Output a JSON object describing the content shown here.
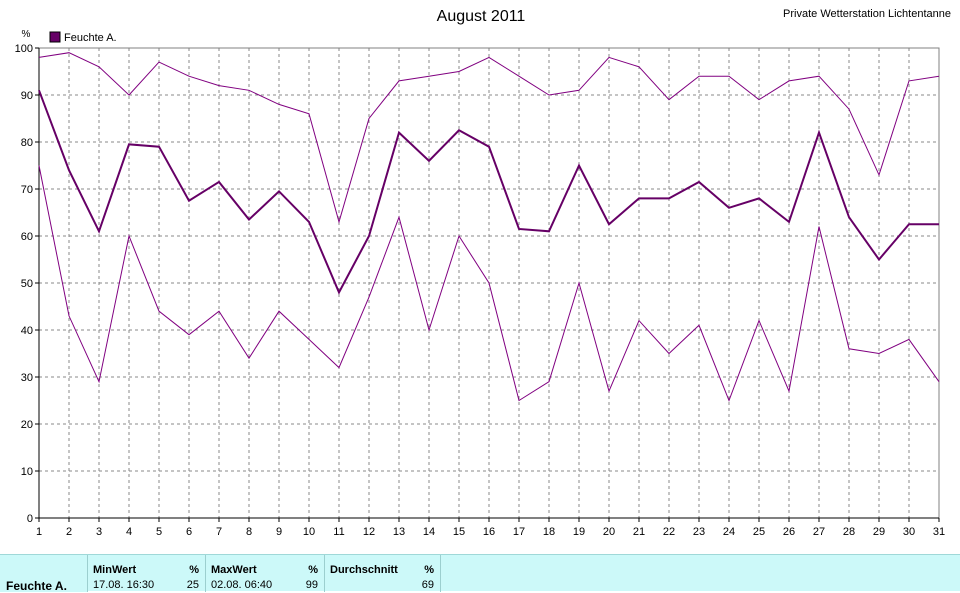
{
  "chart_data": {
    "type": "line",
    "title": "August 2011",
    "station": "Private Wetterstation Lichtentanne",
    "ylabel": "%",
    "legend": {
      "label": "Feuchte A.",
      "position": "top-left"
    },
    "ylim": [
      0,
      100
    ],
    "xlim": [
      1,
      31
    ],
    "yticks": [
      0,
      10,
      20,
      30,
      40,
      50,
      60,
      70,
      80,
      90,
      100
    ],
    "x": [
      1,
      2,
      3,
      4,
      5,
      6,
      7,
      8,
      9,
      10,
      11,
      12,
      13,
      14,
      15,
      16,
      17,
      18,
      19,
      20,
      21,
      22,
      23,
      24,
      25,
      26,
      27,
      28,
      29,
      30,
      31
    ],
    "grid": true,
    "series": [
      {
        "name": "",
        "role": "max",
        "color": "#800080",
        "values": [
          98,
          99,
          96,
          90,
          97,
          94,
          92,
          91,
          88,
          86,
          63,
          85,
          93,
          94,
          95,
          98,
          94,
          90,
          91,
          98,
          96,
          89,
          94,
          94,
          89,
          93,
          94,
          87,
          73,
          93,
          94
        ]
      },
      {
        "name": "Feuchte A.",
        "role": "avg",
        "color": "#660066",
        "values": [
          91,
          74,
          61,
          79.5,
          79,
          67.5,
          71.5,
          63.5,
          69.5,
          63,
          48,
          60,
          82,
          76,
          82.5,
          79,
          61.5,
          61,
          75,
          62.5,
          68,
          68,
          71.5,
          66,
          68,
          63,
          82,
          64,
          55,
          62.5,
          62.5
        ]
      },
      {
        "name": "",
        "role": "min",
        "color": "#800080",
        "values": [
          75,
          43,
          29,
          60,
          44,
          39,
          44,
          34,
          44,
          38,
          32,
          47,
          64,
          40,
          60,
          50,
          25,
          29,
          50,
          27,
          42,
          35,
          41,
          25,
          42,
          27,
          62,
          36,
          35,
          38,
          29
        ]
      }
    ]
  },
  "stats": {
    "sensor": "Feuchte A.",
    "min": {
      "header": "MinWert",
      "unit": "%",
      "time": "17.08.  16:30",
      "value": "25"
    },
    "max": {
      "header": "MaxWert",
      "unit": "%",
      "time": "02.08.  06:40",
      "value": "99"
    },
    "avg": {
      "header": "Durchschnitt",
      "unit": "%",
      "value": "69"
    }
  }
}
